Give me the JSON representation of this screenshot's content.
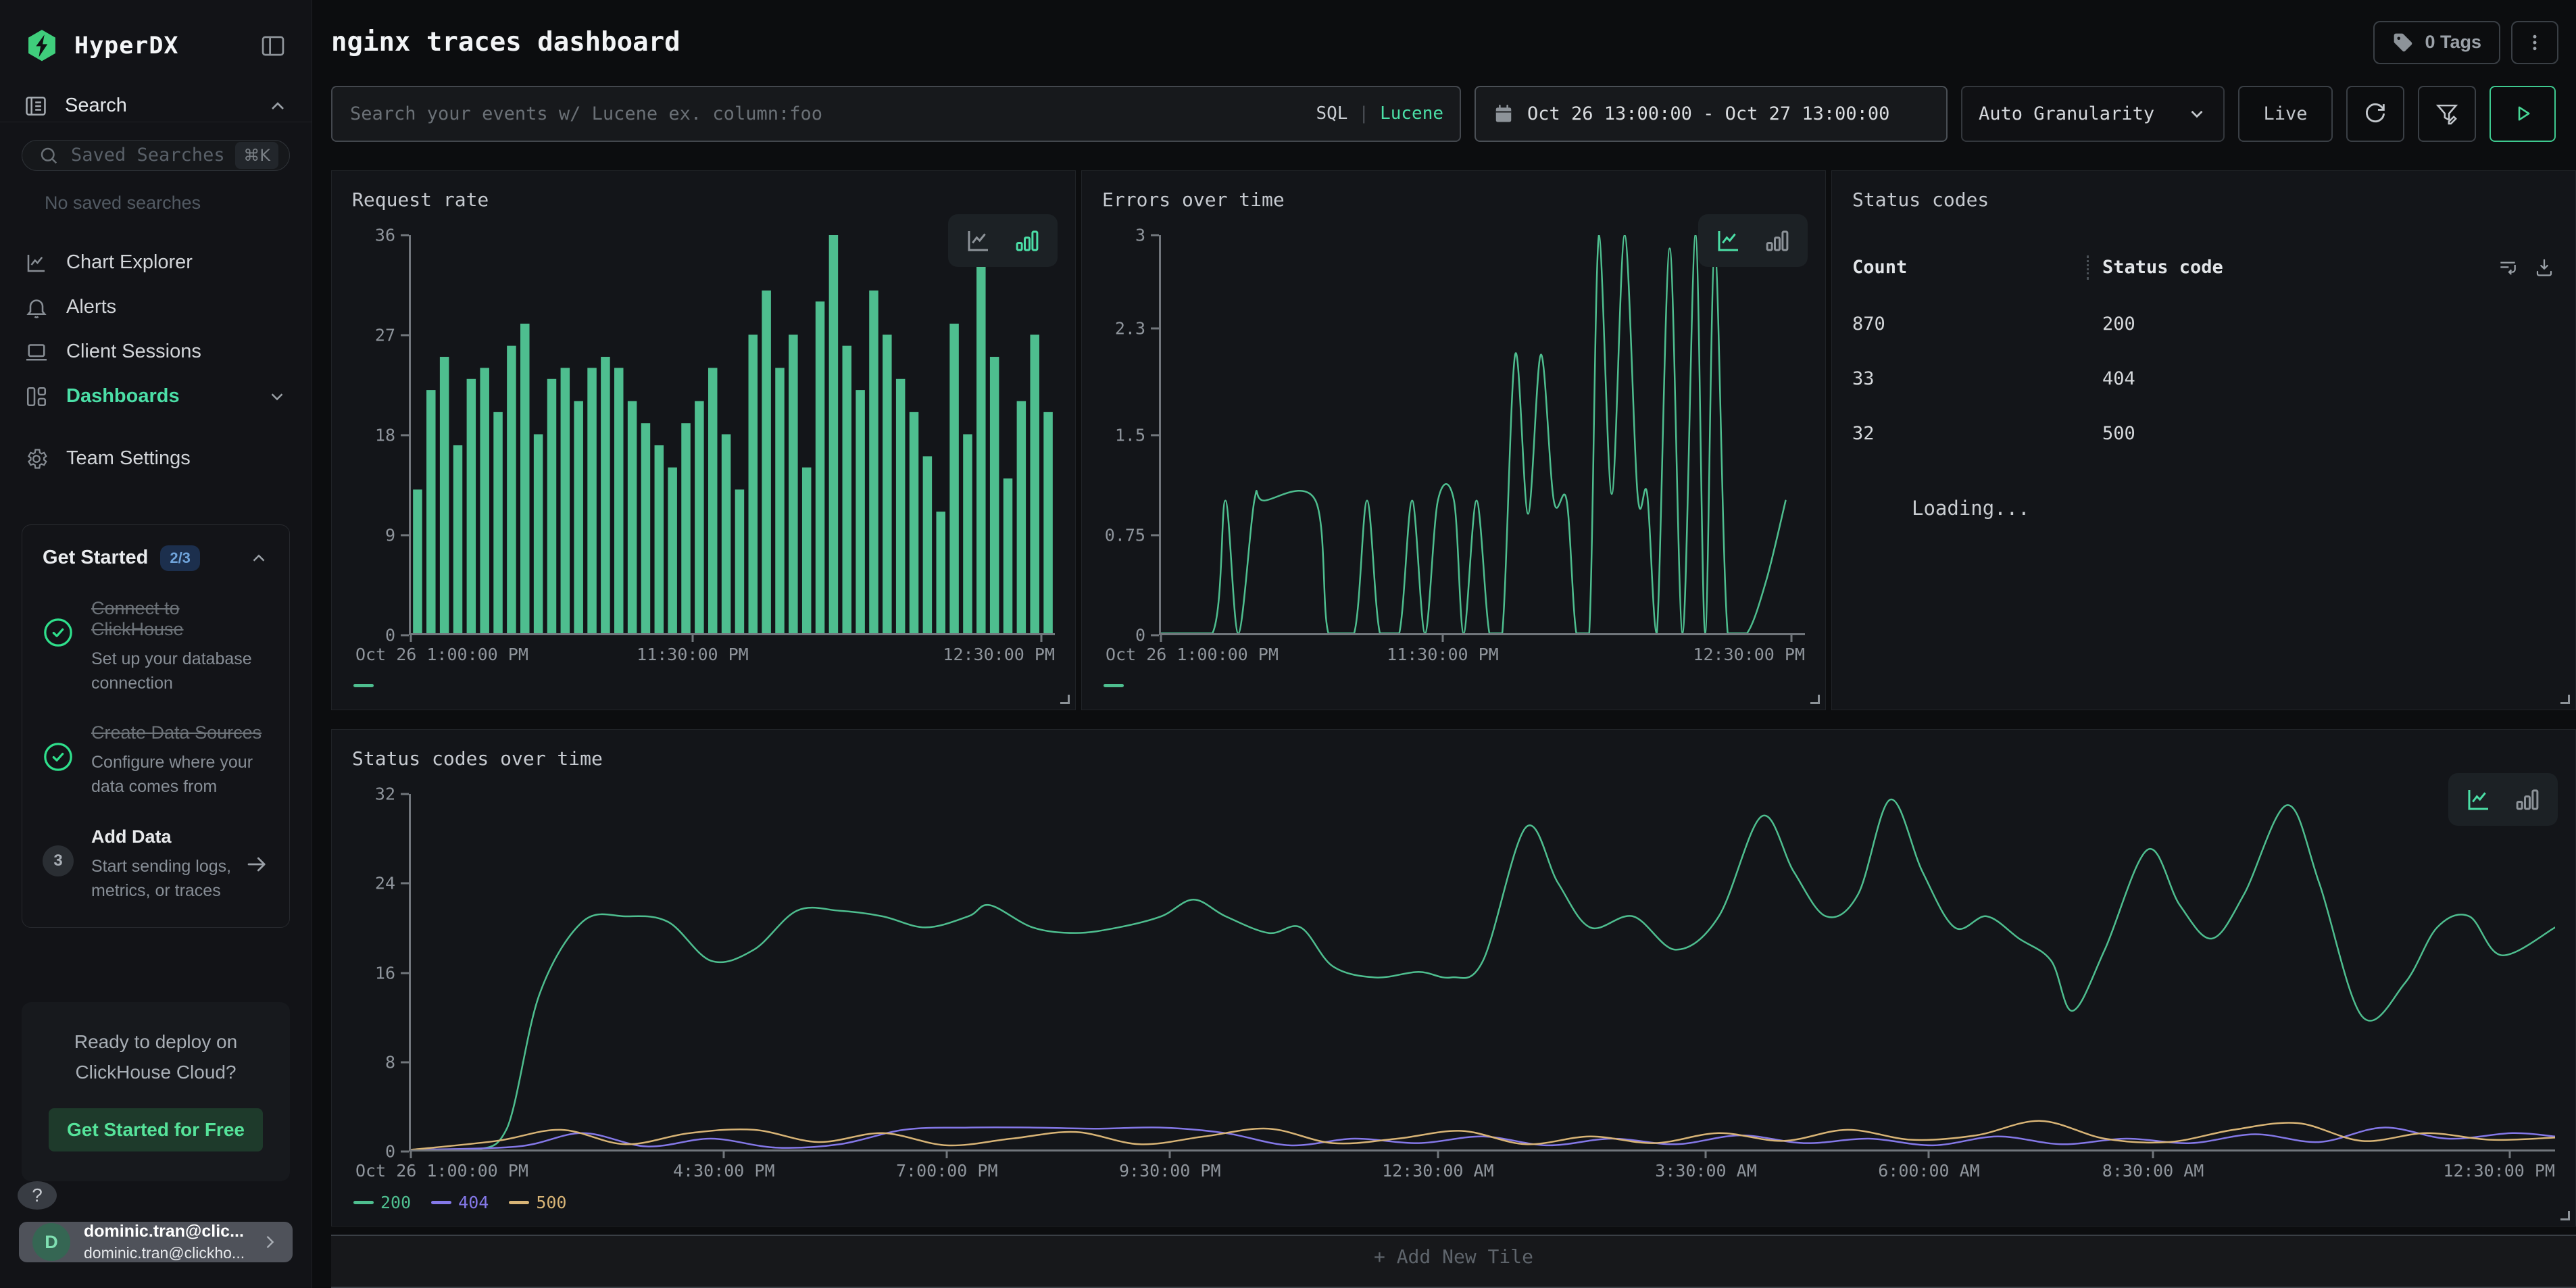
{
  "app": {
    "brand": "HyperDX"
  },
  "sidebar": {
    "search_header": "Search",
    "saved_searches_placeholder": "Saved Searches",
    "saved_searches_shortcut": "⌘K",
    "no_saved_searches": "No saved searches",
    "nav": [
      {
        "label": "Chart Explorer",
        "icon": "line-chart-icon",
        "active": false
      },
      {
        "label": "Alerts",
        "icon": "bell-icon",
        "active": false
      },
      {
        "label": "Client Sessions",
        "icon": "laptop-icon",
        "active": false
      },
      {
        "label": "Dashboards",
        "icon": "dashboards-icon",
        "active": true
      },
      {
        "label": "Team Settings",
        "icon": "gear-icon",
        "active": false
      }
    ],
    "get_started": {
      "title": "Get Started",
      "badge": "2/3",
      "items": [
        {
          "title": "Connect to ClickHouse",
          "description": "Set up your database connection",
          "status": "done"
        },
        {
          "title": "Create Data Sources",
          "description": "Configure where your data comes from",
          "status": "done"
        },
        {
          "title": "Add Data",
          "description": "Start sending logs, metrics, or traces",
          "status": "3"
        }
      ]
    },
    "deploy": {
      "line1": "Ready to deploy on",
      "line2": "ClickHouse Cloud?",
      "cta": "Get Started for Free"
    },
    "help_label": "?",
    "user": {
      "initial": "D",
      "name": "dominic.tran@clic...",
      "email": "dominic.tran@clickho..."
    }
  },
  "header": {
    "title": "nginx traces dashboard",
    "tags_label": "0 Tags"
  },
  "filters": {
    "search_placeholder": "Search your events w/ Lucene ex. column:foo",
    "sql_label": "SQL",
    "divider": "|",
    "lucene_label": "Lucene",
    "date_range": "Oct 26 13:00:00 - Oct 27 13:00:00",
    "granularity": "Auto Granularity",
    "live_label": "Live"
  },
  "colors": {
    "accent_green": "#4BDFA7",
    "bar_green": "#4EBE8F",
    "series_404_purple": "#8478E8",
    "series_500_gold": "#D8B476",
    "badge_blue_bg": "#1C2F4D",
    "badge_blue_text": "#6FA3DA"
  },
  "add_tile_label": "+ Add New Tile",
  "chart_data": [
    {
      "id": "request_rate",
      "type": "bar",
      "title": "Request rate",
      "ylim": [
        0,
        36
      ],
      "yticks": [
        36,
        27,
        18,
        9,
        0
      ],
      "xticks": [
        {
          "pos": 0,
          "label": "Oct 26 1:00:00 PM"
        },
        {
          "pos": 0.4375,
          "label": "11:30:00 PM"
        },
        {
          "pos": 0.979,
          "label": "12:30:00 PM"
        }
      ],
      "color": "#4EBE8F",
      "values": [
        13,
        22,
        25,
        17,
        23,
        24,
        20,
        26,
        28,
        18,
        23,
        24,
        21,
        24,
        25,
        24,
        21,
        19,
        17,
        15,
        19,
        21,
        24,
        18,
        13,
        27,
        31,
        24,
        27,
        15,
        30,
        36,
        26,
        22,
        31,
        27,
        23,
        20,
        16,
        11,
        28,
        18,
        34,
        25,
        14,
        21,
        27,
        20
      ],
      "legend": [
        {
          "label": "",
          "color": "#4EBE8F"
        }
      ]
    },
    {
      "id": "errors_over_time",
      "type": "line",
      "title": "Errors over time",
      "ylim": [
        0,
        3
      ],
      "yticks": [
        3,
        2.3,
        1.5,
        0.75,
        0
      ],
      "xticks": [
        {
          "pos": 0,
          "label": "Oct 26 1:00:00 PM"
        },
        {
          "pos": 0.4375,
          "label": "11:30:00 PM"
        },
        {
          "pos": 0.979,
          "label": "12:30:00 PM"
        }
      ],
      "series": [
        {
          "name": "",
          "color": "#4EBE8F",
          "points": [
            [
              0,
              0
            ],
            [
              8,
              0
            ],
            [
              10,
              1
            ],
            [
              12,
              0
            ],
            [
              14.5,
              1
            ],
            [
              16,
              1
            ],
            [
              24,
              1
            ],
            [
              26,
              0
            ],
            [
              30,
              0
            ],
            [
              32,
              1
            ],
            [
              34,
              0
            ],
            [
              37,
              0
            ],
            [
              39,
              1
            ],
            [
              41,
              0
            ],
            [
              43,
              1
            ],
            [
              45.5,
              1
            ],
            [
              47,
              0
            ],
            [
              49,
              1
            ],
            [
              51,
              0
            ],
            [
              53,
              0
            ],
            [
              55,
              2.1
            ],
            [
              57,
              0.9
            ],
            [
              59,
              2.1
            ],
            [
              61,
              1
            ],
            [
              63,
              1
            ],
            [
              64.5,
              0
            ],
            [
              66.5,
              0
            ],
            [
              68,
              3
            ],
            [
              70,
              1.05
            ],
            [
              72,
              3
            ],
            [
              74,
              1.05
            ],
            [
              75.5,
              1.05
            ],
            [
              77,
              0
            ],
            [
              79,
              2.9
            ],
            [
              81,
              0
            ],
            [
              83,
              3
            ],
            [
              84.5,
              0
            ],
            [
              86,
              2.9
            ],
            [
              88,
              0
            ],
            [
              91,
              0
            ],
            [
              94,
              0.4
            ],
            [
              97,
              1
            ]
          ]
        }
      ],
      "legend": [
        {
          "label": "",
          "color": "#4EBE8F"
        }
      ]
    },
    {
      "id": "status_codes",
      "type": "table",
      "title": "Status codes",
      "columns": [
        "Count",
        "Status code"
      ],
      "rows": [
        [
          "870",
          "200"
        ],
        [
          "33",
          "404"
        ],
        [
          "32",
          "500"
        ]
      ],
      "loading": "Loading..."
    },
    {
      "id": "status_codes_over_time",
      "type": "line",
      "title": "Status codes over time",
      "ylim": [
        0,
        32
      ],
      "yticks": [
        32,
        24,
        16,
        8,
        0
      ],
      "xticks": [
        {
          "pos": 0,
          "label": "Oct 26 1:00:00 PM"
        },
        {
          "pos": 0.146,
          "label": "4:30:00 PM"
        },
        {
          "pos": 0.25,
          "label": "7:00:00 PM"
        },
        {
          "pos": 0.354,
          "label": "9:30:00 PM"
        },
        {
          "pos": 0.479,
          "label": "12:30:00 AM"
        },
        {
          "pos": 0.604,
          "label": "3:30:00 AM"
        },
        {
          "pos": 0.708,
          "label": "6:00:00 AM"
        },
        {
          "pos": 0.8125,
          "label": "8:30:00 AM"
        },
        {
          "pos": 0.979,
          "label": "12:30:00 PM"
        }
      ],
      "series": [
        {
          "name": "200",
          "color": "#4EBE8F",
          "points": [
            [
              0,
              0
            ],
            [
              3,
              0
            ],
            [
              4.5,
              2
            ],
            [
              6,
              14
            ],
            [
              8,
              20.5
            ],
            [
              10,
              21
            ],
            [
              12,
              20.5
            ],
            [
              14,
              17
            ],
            [
              16,
              18
            ],
            [
              18,
              21.5
            ],
            [
              20,
              21.5
            ],
            [
              22,
              21
            ],
            [
              24,
              20
            ],
            [
              26,
              21
            ],
            [
              27,
              22
            ],
            [
              29,
              20
            ],
            [
              31,
              19.5
            ],
            [
              33,
              20
            ],
            [
              35,
              21
            ],
            [
              36.5,
              22.5
            ],
            [
              38,
              21
            ],
            [
              40,
              19.5
            ],
            [
              41.5,
              20
            ],
            [
              43,
              16.5
            ],
            [
              45,
              15.5
            ],
            [
              47,
              16
            ],
            [
              48.5,
              15.5
            ],
            [
              50,
              17
            ],
            [
              52,
              29
            ],
            [
              53.5,
              24
            ],
            [
              55,
              20
            ],
            [
              57,
              21
            ],
            [
              59,
              18
            ],
            [
              61,
              21
            ],
            [
              63,
              30
            ],
            [
              64.5,
              25
            ],
            [
              66,
              21
            ],
            [
              67.5,
              23
            ],
            [
              69,
              31.5
            ],
            [
              70.5,
              25
            ],
            [
              72,
              20
            ],
            [
              73.5,
              21
            ],
            [
              75,
              19
            ],
            [
              76.5,
              17
            ],
            [
              77.5,
              12.5
            ],
            [
              79,
              18
            ],
            [
              81,
              27
            ],
            [
              82.5,
              22
            ],
            [
              84,
              19
            ],
            [
              85.5,
              23
            ],
            [
              87.5,
              31
            ],
            [
              89,
              24
            ],
            [
              91,
              12
            ],
            [
              93,
              15
            ],
            [
              94.5,
              20
            ],
            [
              96,
              21
            ],
            [
              97.5,
              17.5
            ],
            [
              100,
              20
            ]
          ]
        },
        {
          "name": "404",
          "color": "#8478E8",
          "points": [
            [
              0,
              0
            ],
            [
              5,
              0.3
            ],
            [
              8,
              1.5
            ],
            [
              11,
              0.3
            ],
            [
              14,
              1
            ],
            [
              17,
              0.2
            ],
            [
              20,
              0.5
            ],
            [
              23,
              1.8
            ],
            [
              26,
              2
            ],
            [
              29,
              2
            ],
            [
              32,
              1.9
            ],
            [
              35,
              2
            ],
            [
              38,
              1.5
            ],
            [
              41,
              0.4
            ],
            [
              44,
              1
            ],
            [
              47,
              0.6
            ],
            [
              50,
              1.2
            ],
            [
              53,
              0.4
            ],
            [
              56,
              1
            ],
            [
              59,
              0.5
            ],
            [
              62,
              1.3
            ],
            [
              65,
              0.6
            ],
            [
              68,
              1
            ],
            [
              71,
              0.4
            ],
            [
              74,
              1.2
            ],
            [
              77,
              0.5
            ],
            [
              80,
              1
            ],
            [
              83,
              0.6
            ],
            [
              86,
              1.4
            ],
            [
              89,
              0.7
            ],
            [
              92,
              2
            ],
            [
              95,
              1
            ],
            [
              98,
              1.5
            ],
            [
              100,
              1.2
            ]
          ]
        },
        {
          "name": "500",
          "color": "#D8B476",
          "points": [
            [
              0,
              0
            ],
            [
              4,
              0.8
            ],
            [
              7,
              1.8
            ],
            [
              10,
              0.5
            ],
            [
              13,
              1.5
            ],
            [
              16,
              1.8
            ],
            [
              19,
              0.7
            ],
            [
              22,
              1.5
            ],
            [
              25,
              0.4
            ],
            [
              28,
              1
            ],
            [
              31,
              1.6
            ],
            [
              34,
              0.5
            ],
            [
              37,
              1.2
            ],
            [
              40,
              1.9
            ],
            [
              43,
              0.6
            ],
            [
              46,
              1
            ],
            [
              49,
              1.7
            ],
            [
              52,
              0.5
            ],
            [
              55,
              1.2
            ],
            [
              58,
              0.6
            ],
            [
              61,
              1.5
            ],
            [
              64,
              0.8
            ],
            [
              67,
              1.8
            ],
            [
              70,
              0.9
            ],
            [
              73,
              1.3
            ],
            [
              76,
              2.6
            ],
            [
              79,
              1
            ],
            [
              82,
              0.7
            ],
            [
              85,
              1.8
            ],
            [
              88,
              2.4
            ],
            [
              91,
              0.8
            ],
            [
              94,
              1.5
            ],
            [
              97,
              0.9
            ],
            [
              100,
              1.1
            ]
          ]
        }
      ],
      "legend": [
        {
          "label": "200",
          "color": "#4EBE8F"
        },
        {
          "label": "404",
          "color": "#8478E8"
        },
        {
          "label": "500",
          "color": "#D8B476"
        }
      ]
    }
  ]
}
